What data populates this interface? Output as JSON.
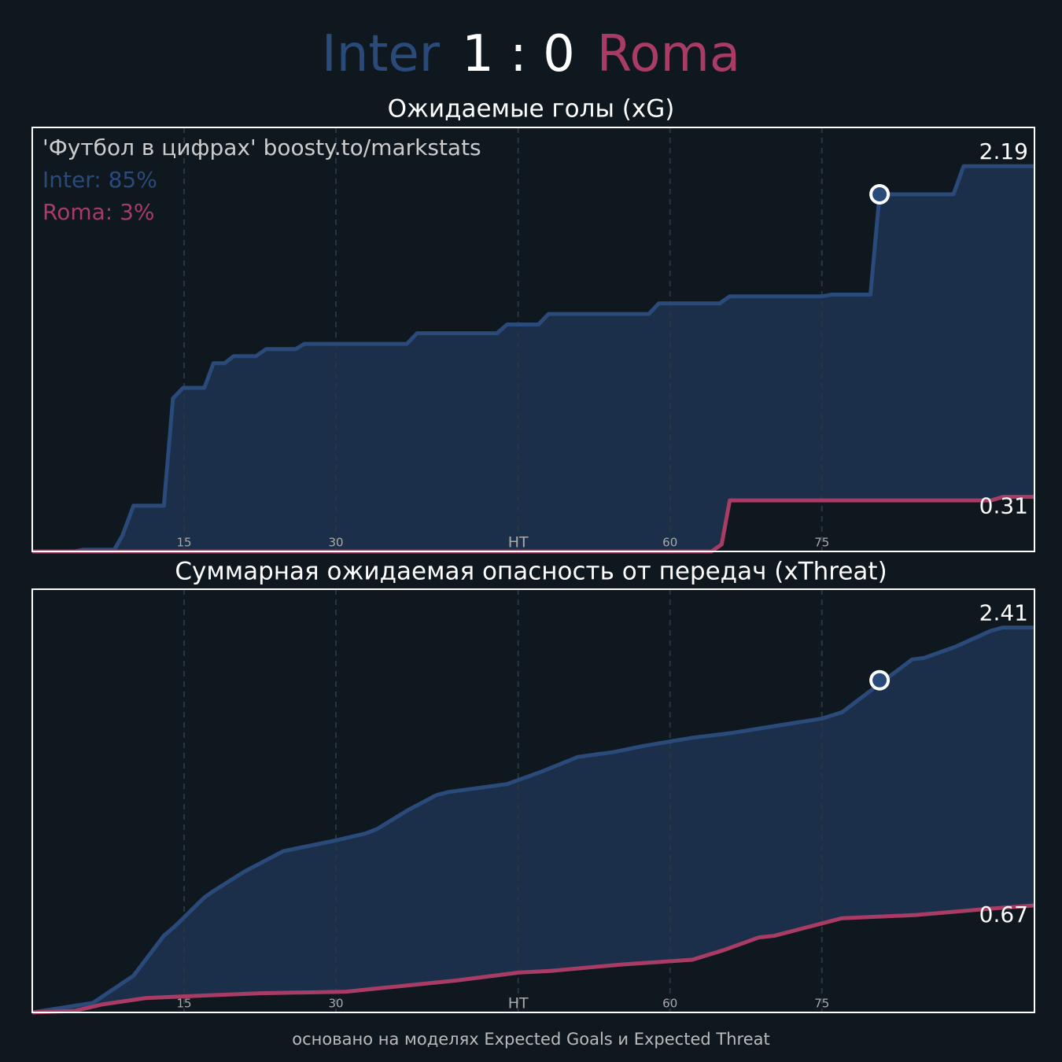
{
  "header": {
    "home": "Inter",
    "score": "1 : 0",
    "away": "Roma"
  },
  "chart_data": [
    {
      "type": "line",
      "title": "Ожидаемые голы (xG)",
      "annotations": [
        "'Футбол в цифрах' boosty.to/markstats",
        "Inter: 85%",
        "Roma: 3%"
      ],
      "xlim": [
        0,
        99
      ],
      "ylim": [
        0,
        2.41
      ],
      "xticks": [
        15,
        30,
        {
          "value": 48,
          "label": "HT"
        },
        {
          "value": 63,
          "label": "60"
        },
        {
          "value": 78,
          "label": "75"
        }
      ],
      "grid": true,
      "series": [
        {
          "name": "Inter",
          "color": "#2a4a7a",
          "fill": "#1b2f4b",
          "x": [
            0,
            4.2,
            5.0,
            8.1,
            8.9,
            10.0,
            13.0,
            13.9,
            14.9,
            17.0,
            17.9,
            19.0,
            19.9,
            22.1,
            23.1,
            26.0,
            26.9,
            37.0,
            38.0,
            45.9,
            46.9,
            50.0,
            51.0,
            60.9,
            61.9,
            67.9,
            68.9,
            78.0,
            79.0,
            82.8,
            83.7,
            91.0,
            92.0,
            99
          ],
          "values": [
            0,
            0,
            0.01,
            0.01,
            0.09,
            0.26,
            0.26,
            0.87,
            0.93,
            0.93,
            1.07,
            1.07,
            1.11,
            1.11,
            1.15,
            1.15,
            1.18,
            1.18,
            1.24,
            1.24,
            1.29,
            1.29,
            1.35,
            1.35,
            1.41,
            1.41,
            1.45,
            1.45,
            1.46,
            1.46,
            2.03,
            2.03,
            2.19,
            2.19
          ]
        },
        {
          "name": "Roma",
          "color": "#a83c64",
          "fill": "#0f171f",
          "x": [
            0,
            67.1,
            68.1,
            68.9,
            94.7,
            95.9,
            99
          ],
          "values": [
            0,
            0,
            0.04,
            0.29,
            0.29,
            0.31,
            0.31
          ]
        }
      ],
      "markers": {
        "x": [
          83.7
        ],
        "y": [
          2.03
        ]
      }
    },
    {
      "type": "line",
      "title": "Суммарная ожидаемая опасность от передач (xThreat)",
      "xlim": [
        0,
        99
      ],
      "ylim": [
        0,
        2.65
      ],
      "xticks": [
        15,
        30,
        {
          "value": 48,
          "label": "HT"
        },
        {
          "value": 63,
          "label": "60"
        },
        {
          "value": 78,
          "label": "75"
        }
      ],
      "grid": true,
      "series": [
        {
          "name": "Inter",
          "color": "#2a4a7a",
          "fill": "#1b2f4b",
          "x": [
            0,
            6.0,
            10.0,
            13.0,
            14.1,
            17.0,
            17.9,
            20.9,
            24.8,
            30.2,
            32.9,
            34.1,
            37.2,
            39.9,
            41.1,
            46.9,
            50.4,
            53.9,
            57.4,
            60.5,
            65.2,
            69.1,
            73.0,
            78.0,
            80.0,
            82.3,
            86.9,
            88.1,
            91.2,
            94.7,
            95.9,
            99
          ],
          "values": [
            0,
            0.06,
            0.23,
            0.48,
            0.54,
            0.72,
            0.76,
            0.88,
            1.01,
            1.08,
            1.12,
            1.15,
            1.27,
            1.36,
            1.38,
            1.43,
            1.51,
            1.6,
            1.63,
            1.67,
            1.72,
            1.75,
            1.79,
            1.84,
            1.88,
            1.99,
            2.21,
            2.22,
            2.29,
            2.39,
            2.41,
            2.41
          ]
        },
        {
          "name": "Roma",
          "color": "#a83c64",
          "fill": "#0f171f",
          "x": [
            0,
            4.2,
            6.9,
            11.2,
            14.7,
            22.5,
            31.0,
            34.1,
            41.9,
            48.1,
            51.2,
            58.2,
            65.2,
            68.3,
            71.8,
            73.3,
            80.0,
            87.3,
            94.7,
            99
          ],
          "values": [
            0,
            0.01,
            0.05,
            0.09,
            0.1,
            0.12,
            0.13,
            0.15,
            0.2,
            0.25,
            0.26,
            0.3,
            0.33,
            0.39,
            0.47,
            0.48,
            0.59,
            0.61,
            0.65,
            0.67
          ]
        }
      ],
      "markers": {
        "x": [
          83.7
        ],
        "y": [
          2.08
        ]
      }
    }
  ],
  "footer": "основано на моделях Expected Goals и Expected Threat"
}
